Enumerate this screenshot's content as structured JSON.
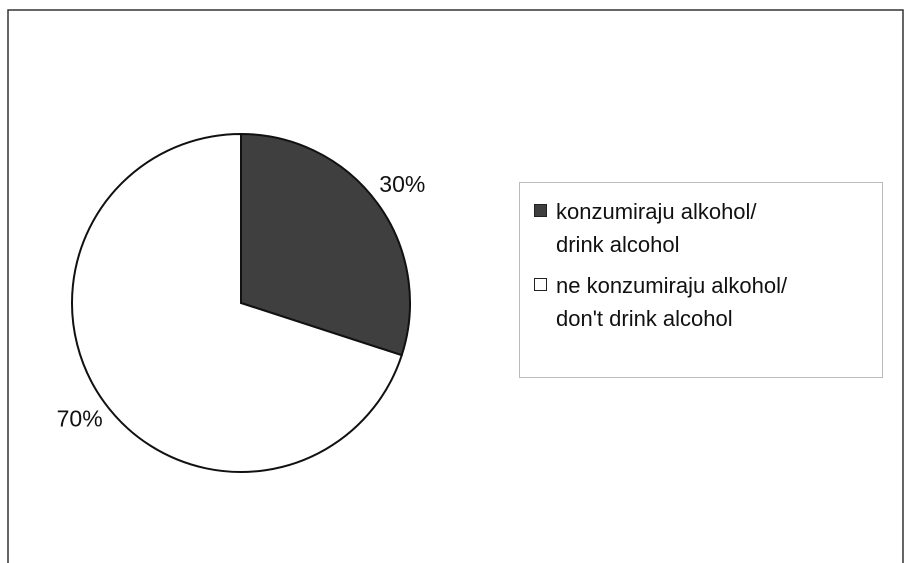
{
  "chart_data": {
    "type": "pie",
    "categories": [
      "konzumiraju alkohol/\ndrink alcohol",
      "ne konzumiraju alkohol/\ndon't drink alcohol"
    ],
    "values": [
      30,
      70
    ],
    "value_labels": [
      "30%",
      "70%"
    ],
    "colors": [
      "#3f3f3f",
      "#ffffff"
    ],
    "start_angle": 0,
    "direction": "clockwise",
    "legend": "right"
  }
}
